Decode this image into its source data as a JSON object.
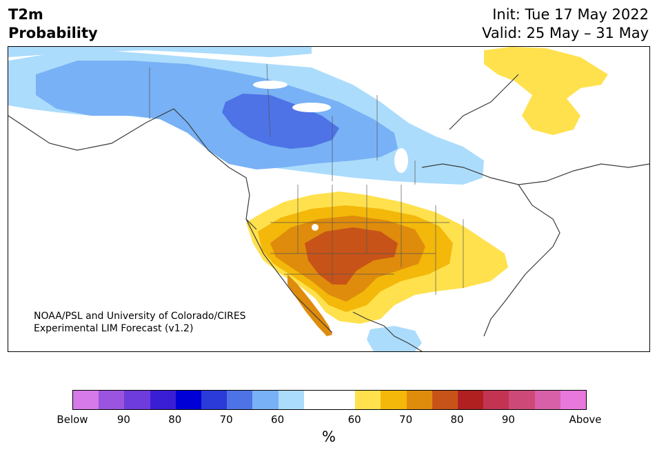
{
  "title": {
    "line1": "T2m",
    "line2": "Probability",
    "init": "Init: Tue 17 May 2022",
    "valid": "Valid: 25 May – 31 May"
  },
  "credit": {
    "line1": "NOAA/PSL and University of Colorado/CIRES",
    "line2": "Experimental LIM Forecast (v1.2)"
  },
  "colorbar": {
    "unit": "%",
    "colors": [
      "#d57ae8",
      "#9b54e0",
      "#6e3bdc",
      "#3a1ed6",
      "#0000d6",
      "#2a3bd9",
      "#4e73e6",
      "#78b1f5",
      "#acdcfc",
      "#ffffff",
      "#ffffff",
      "#ffe14d",
      "#f3b80a",
      "#df8c0c",
      "#c85318",
      "#b02020",
      "#c23452",
      "#cd4a78",
      "#d860a8",
      "#e878dc"
    ],
    "tick_labels": [
      "Below",
      "90",
      "80",
      "70",
      "60",
      "60",
      "70",
      "80",
      "90",
      "Above"
    ]
  },
  "legend_colors": {
    "cold_light": "#acdcfc",
    "cold_mid": "#78b1f5",
    "cold_dark": "#4e73e6",
    "warm_light": "#ffe14d",
    "warm_mid": "#f3b80a",
    "warm_orange": "#df8c0c",
    "warm_dark": "#c85318"
  }
}
